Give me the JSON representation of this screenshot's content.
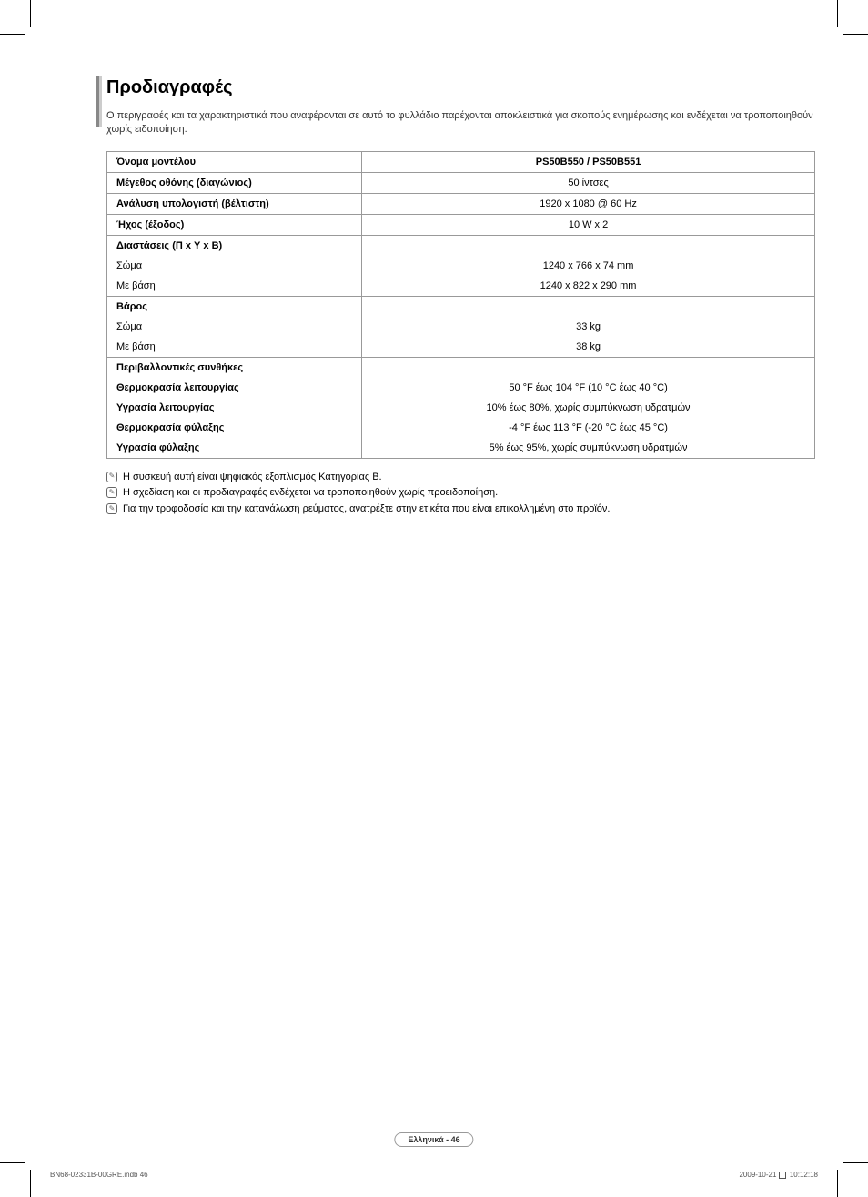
{
  "heading": "Προδιαγραφές",
  "intro": "Ο περιγραφές και τα χαρακτηριστικά που αναφέρονται σε αυτό το φυλλάδιο παρέχονται αποκλειστικά για σκοπούς ενημέρωσης και ενδέχεται να τροποποιηθούν χωρίς ειδοποίηση.",
  "table": {
    "rows": [
      {
        "label": "Όνομα μοντέλου",
        "value": "PS50B550 / PS50B551",
        "bold": true,
        "valueBold": true
      },
      {
        "label": "Μέγεθος οθόνης (διαγώνιος)",
        "value": "50 ίντσες",
        "bold": true
      },
      {
        "label": "Ανάλυση υπολογιστή (βέλτιστη)",
        "value": "1920 x 1080 @ 60 Hz",
        "bold": true
      },
      {
        "label": "Ήχος (έξοδος)",
        "value": "10 W x 2",
        "bold": true
      },
      {
        "label": "Διαστάσεις (Π x Υ x Β)",
        "value": "",
        "bold": true,
        "section": true
      },
      {
        "label": "Σώμα",
        "value": "1240 x 766 x 74 mm",
        "sub": true
      },
      {
        "label": "Με βάση",
        "value": "1240 x 822 x 290 mm",
        "sub": true
      },
      {
        "label": "Βάρος",
        "value": "",
        "bold": true,
        "section": true
      },
      {
        "label": "Σώμα",
        "value": "33 kg",
        "sub": true
      },
      {
        "label": "Με βάση",
        "value": "38 kg",
        "sub": true
      },
      {
        "label": "Περιβαλλοντικές συνθήκες",
        "value": "",
        "bold": true,
        "section": true
      },
      {
        "label": "Θερμοκρασία λειτουργίας",
        "value": "50 °F έως 104 °F (10 °C έως 40 °C)",
        "bold": true,
        "sub": true
      },
      {
        "label": "Υγρασία λειτουργίας",
        "value": "10% έως 80%, χωρίς συμπύκνωση υδρατμών",
        "bold": true,
        "sub": true
      },
      {
        "label": "Θερμοκρασία φύλαξης",
        "value": "-4 °F έως 113 °F (-20 °C έως 45 °C)",
        "bold": true,
        "sub": true
      },
      {
        "label": "Υγρασία φύλαξης",
        "value": "5% έως 95%, χωρίς συμπύκνωση υδρατμών",
        "bold": true,
        "sub": true
      }
    ]
  },
  "notes": [
    "Η συσκευή αυτή είναι ψηφιακός εξοπλισμός Κατηγορίας B.",
    "Η σχεδίαση και οι προδιαγραφές ενδέχεται να τροποποιηθούν χωρίς προειδοποίηση.",
    "Για την τροφοδοσία και την κατανάλωση ρεύματος, ανατρέξτε στην ετικέτα που είναι επικολλημένη στο προϊόν."
  ],
  "pageLabel": "Ελληνικά - 46",
  "footerLeft": "BN68-02331B-00GRE.indb   46",
  "footerRightDate": "2009-10-21",
  "footerRightTime": "10:12:18"
}
